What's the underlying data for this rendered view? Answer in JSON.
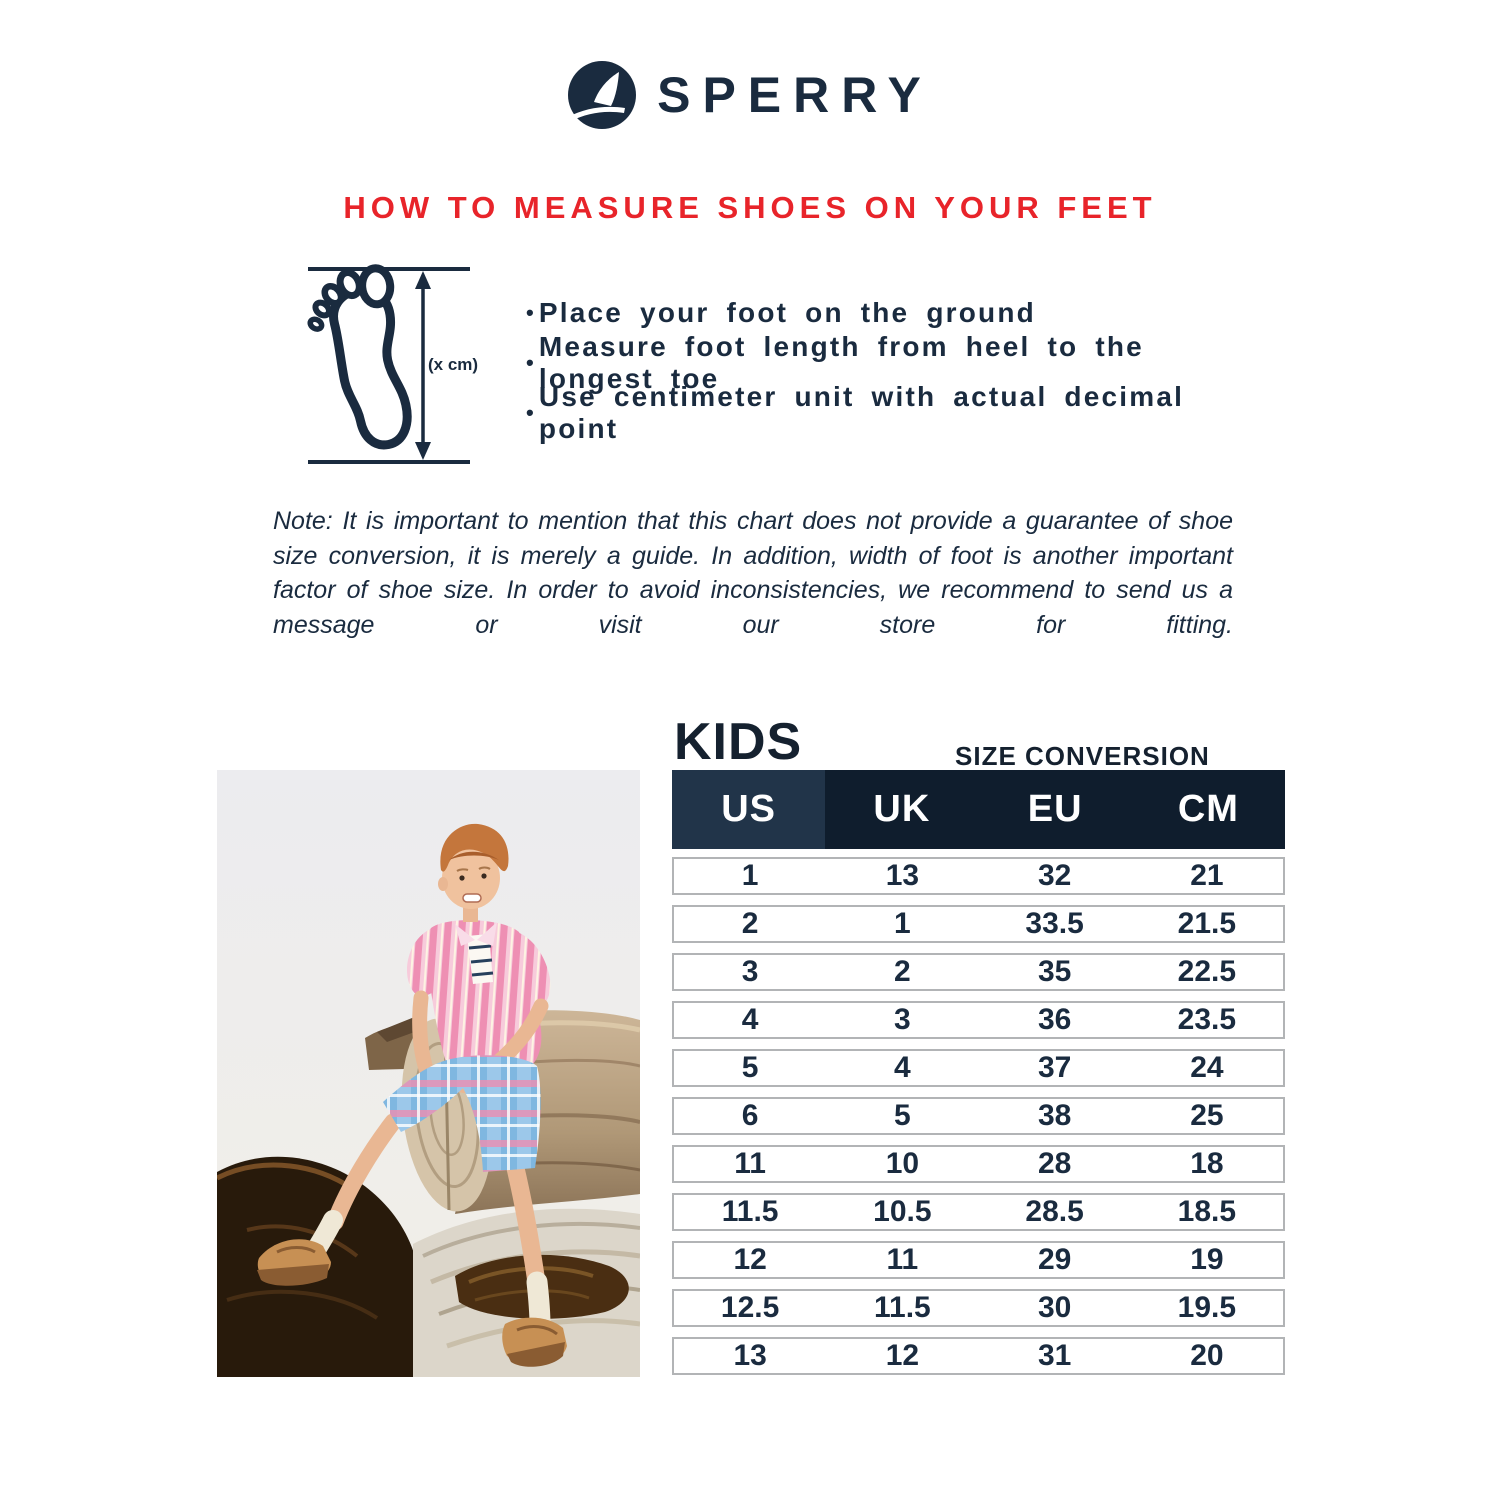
{
  "brand": {
    "name": "SPERRY"
  },
  "heading": "HOW TO MEASURE SHOES ON YOUR FEET",
  "diagram": {
    "label": "(x cm)"
  },
  "bullet": "•",
  "instructions": [
    "Place your foot on the ground",
    "Measure foot length from heel to the longest toe",
    "Use centimeter unit with actual decimal point"
  ],
  "note": "Note: It is important to mention that this chart does not provide a guarantee of shoe size conversion, it is merely a guide. In addition, width of foot is another important factor of shoe size. In order to avoid inconsistencies, we recommend to send us a message or visit our store for fitting.",
  "size_chart": {
    "group": "KIDS",
    "subtitle": "SIZE CONVERSION",
    "columns": [
      "US",
      "UK",
      "EU",
      "CM"
    ],
    "rows": [
      [
        "1",
        "13",
        "32",
        "21"
      ],
      [
        "2",
        "1",
        "33.5",
        "21.5"
      ],
      [
        "3",
        "2",
        "35",
        "22.5"
      ],
      [
        "4",
        "3",
        "36",
        "23.5"
      ],
      [
        "5",
        "4",
        "37",
        "24"
      ],
      [
        "6",
        "5",
        "38",
        "25"
      ],
      [
        "11",
        "10",
        "28",
        "18"
      ],
      [
        "11.5",
        "10.5",
        "28.5",
        "18.5"
      ],
      [
        "12",
        "11",
        "29",
        "19"
      ],
      [
        "12.5",
        "11.5",
        "30",
        "19.5"
      ],
      [
        "13",
        "12",
        "31",
        "20"
      ]
    ]
  },
  "colors": {
    "navy_text": "#1A2B3F",
    "red_heading": "#E8242A",
    "table_header_bg": "#0F1D2D",
    "table_header_us_bg": "#213449",
    "row_border": "#B2B4B6"
  }
}
